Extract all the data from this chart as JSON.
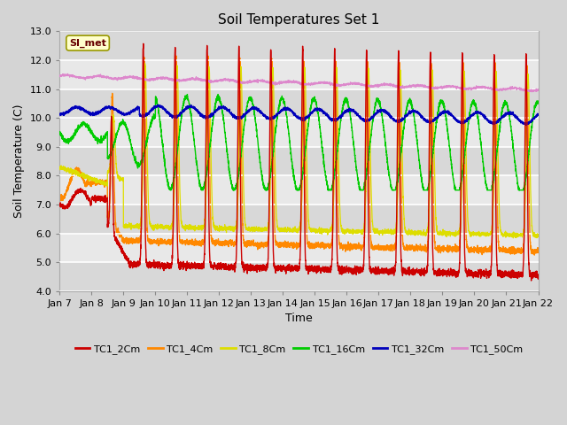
{
  "title": "Soil Temperatures Set 1",
  "xlabel": "Time",
  "ylabel": "Soil Temperature (C)",
  "ylim": [
    4.0,
    13.0
  ],
  "yticks": [
    4.0,
    5.0,
    6.0,
    7.0,
    8.0,
    9.0,
    10.0,
    11.0,
    12.0,
    13.0
  ],
  "num_days": 15,
  "bg_color": "#e0e0e0",
  "plot_bg": "#e8e8e8",
  "colors": {
    "TC1_2Cm": "#cc0000",
    "TC1_4Cm": "#ff8800",
    "TC1_8Cm": "#dddd00",
    "TC1_16Cm": "#00cc00",
    "TC1_32Cm": "#0000bb",
    "TC1_50Cm": "#dd88cc"
  },
  "legend_label": "SI_met",
  "xtick_labels": [
    "Jan 7",
    "Jan 8",
    "Jan 9",
    "Jan 10",
    "Jan 11",
    "Jan 12",
    "Jan 13",
    "Jan 14",
    "Jan 15",
    "Jan 16",
    "Jan 17",
    "Jan 18",
    "Jan 19",
    "Jan 20",
    "Jan 21",
    "Jan 22"
  ]
}
